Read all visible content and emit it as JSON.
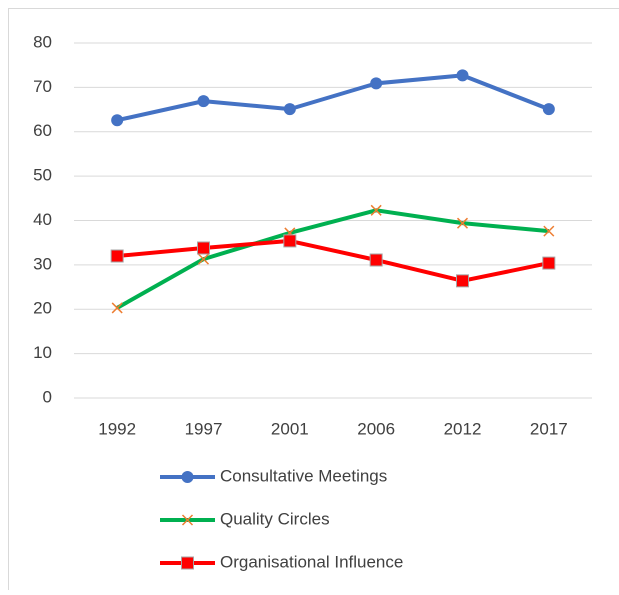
{
  "chart_data": {
    "type": "line",
    "categories": [
      "1992",
      "1997",
      "2001",
      "2006",
      "2012",
      "2017"
    ],
    "series": [
      {
        "name": "Consultative Meetings",
        "color": "#4472c4",
        "marker": "circle",
        "values": [
          62.6,
          66.9,
          65.1,
          70.9,
          72.7,
          65.1
        ]
      },
      {
        "name": "Quality Circles",
        "color": "#00b050",
        "marker": "x",
        "marker_color": "#ed7d31",
        "values": [
          20.3,
          31.3,
          37.2,
          42.3,
          39.4,
          37.6
        ]
      },
      {
        "name": "Organisational Influence",
        "color": "#ff0000",
        "marker": "square",
        "values": [
          32,
          33.8,
          35.4,
          31.1,
          26.4,
          30.4
        ]
      }
    ],
    "ylim": [
      0,
      80
    ],
    "yticks": [
      0,
      10,
      20,
      30,
      40,
      50,
      60,
      70,
      80
    ],
    "grid": true,
    "legend": "bottom"
  }
}
